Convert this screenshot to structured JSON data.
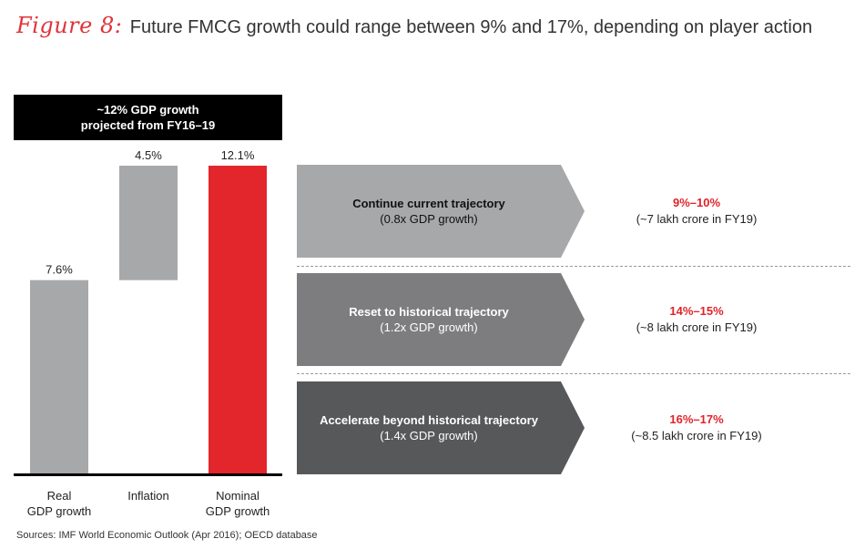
{
  "figure": {
    "label": "Figure 8:",
    "title": "Future FMCG growth could range between 9% and 17%, depending on player action"
  },
  "banner": {
    "line1": "~12% GDP growth",
    "line2": "projected from FY16–19"
  },
  "chart_data": {
    "type": "bar",
    "subtype": "waterfall",
    "title": "~12% GDP growth projected from FY16–19",
    "categories": [
      "Real GDP growth",
      "Inflation",
      "Nominal GDP growth"
    ],
    "category_lines": [
      [
        "Real",
        "GDP growth"
      ],
      [
        "Inflation"
      ],
      [
        "Nominal",
        "GDP growth"
      ]
    ],
    "values": [
      7.6,
      4.5,
      12.1
    ],
    "bases": [
      0,
      7.6,
      0
    ],
    "labels": [
      "7.6%",
      "4.5%",
      "12.1%"
    ],
    "colors": [
      "#a7a8aa",
      "#a7a8aa",
      "#e2262b"
    ],
    "ylim": [
      0,
      12.1
    ],
    "xlabel": "",
    "ylabel": ""
  },
  "scenarios": [
    {
      "name": "Continue current trajectory",
      "detail": "(0.8x GDP growth)",
      "range": "9%–10%",
      "value": "(~7 lakh crore in FY19)",
      "color": "#a7a8aa"
    },
    {
      "name": "Reset to historical trajectory",
      "detail": "(1.2x GDP growth)",
      "range": "14%–15%",
      "value": "(~8 lakh crore in FY19)",
      "color": "#7d7d7f"
    },
    {
      "name": "Accelerate beyond historical trajectory",
      "detail": "(1.4x GDP growth)",
      "range": "16%–17%",
      "value": "(~8.5 lakh crore in FY19)",
      "color": "#57585a"
    }
  ],
  "source": "Sources: IMF World Economic Outlook (Apr 2016); OECD database"
}
